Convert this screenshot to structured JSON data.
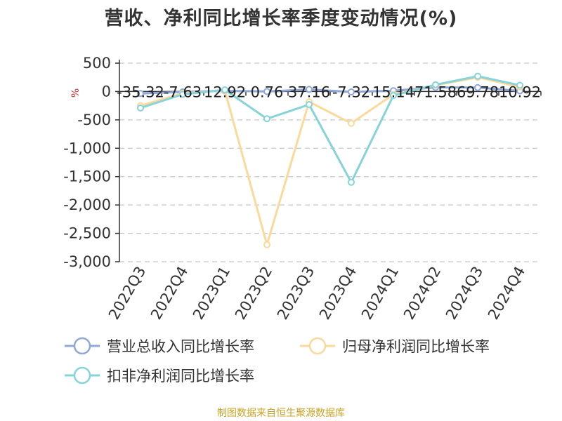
{
  "title": "营收、净利同比增长率季度变动情况(%)",
  "source": "制图数据来自恒生聚源数据库",
  "chart_data": {
    "type": "line",
    "ylabel": "%",
    "ylim": [
      -3000,
      500
    ],
    "yticks": [
      500,
      0,
      -500,
      -1000,
      -1500,
      -2000,
      -2500,
      -3000
    ],
    "ytick_labels": [
      "500",
      "0",
      "-500",
      "-1,000",
      "-1,500",
      "-2,000",
      "-2,500",
      "-3,000"
    ],
    "categories": [
      "2022Q3",
      "2022Q4",
      "2023Q1",
      "2023Q2",
      "2023Q3",
      "2023Q4",
      "2024Q1",
      "2024Q2",
      "2024Q3",
      "2024Q4"
    ],
    "grid": true,
    "legend_position": "bottom",
    "series": [
      {
        "name": "营业总收入同比增长率",
        "color": "#8fa8d9",
        "values": [
          -35.32,
          -7.63,
          12.92,
          0.76,
          37.16,
          -7.32,
          15.14,
          71.58,
          69.78,
          10.92
        ],
        "labels": [
          "-35.32",
          "-7.63",
          "12.92",
          "0.76",
          "37.16",
          "-7.32",
          "15.14",
          "71.58",
          "69.78",
          "10.92"
        ]
      },
      {
        "name": "归母净利润同比增长率",
        "color": "#fbd99a",
        "values": [
          -250,
          -30,
          20,
          -2700,
          -180,
          -560,
          -50,
          110,
          250,
          80
        ]
      },
      {
        "name": "扣非净利润同比增长率",
        "color": "#86d3d9",
        "values": [
          -290,
          -50,
          30,
          -480,
          -230,
          -1600,
          -70,
          120,
          270,
          110
        ]
      }
    ]
  }
}
